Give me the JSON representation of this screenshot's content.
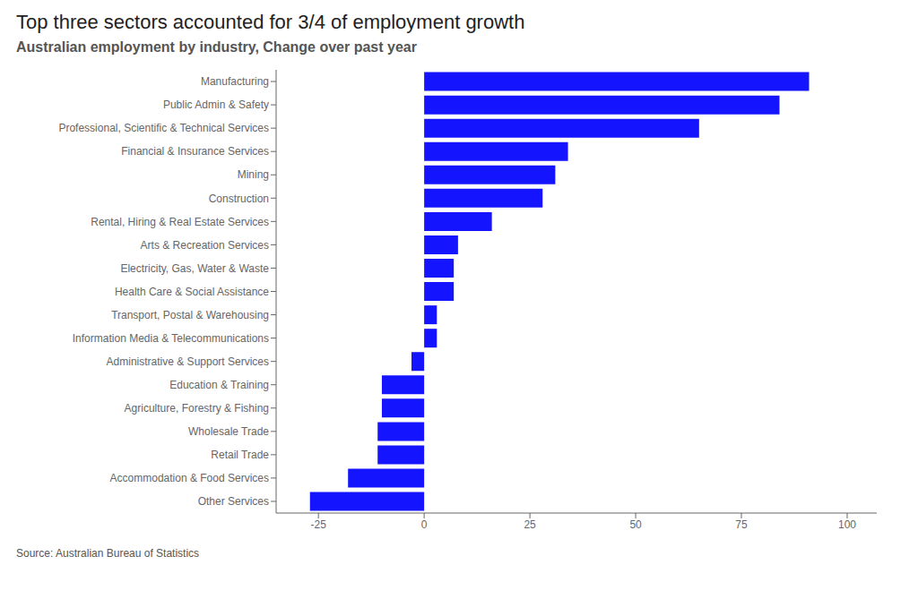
{
  "chart_data": {
    "type": "bar",
    "orientation": "horizontal",
    "title": "Top three sectors accounted for 3/4 of employment growth",
    "subtitle": "Australian employment by industry, Change over past year",
    "annotations": [
      "Source: Australian Bureau of Statistics"
    ],
    "categories": [
      "Manufacturing",
      "Public Admin & Safety",
      "Professional, Scientific & Technical Services",
      "Financial & Insurance Services",
      "Mining",
      "Construction",
      "Rental, Hiring & Real Estate Services",
      "Arts & Recreation Services",
      "Electricity, Gas, Water & Waste",
      "Health Care & Social Assistance",
      "Transport, Postal & Warehousing",
      "Information Media & Telecommunications",
      "Administrative & Support Services",
      "Education & Training",
      "Agriculture, Forestry & Fishing",
      "Wholesale Trade",
      "Retail Trade",
      "Accommodation & Food Services",
      "Other Services"
    ],
    "values": [
      91,
      84,
      65,
      34,
      31,
      28,
      16,
      8,
      7,
      7,
      3,
      3,
      -3,
      -10,
      -10,
      -11,
      -11,
      -18,
      -27
    ],
    "color": "#1414FF",
    "xlim": [
      -35,
      107
    ],
    "xticks": [
      -25,
      0,
      25,
      50,
      75,
      100
    ],
    "grid": false
  }
}
